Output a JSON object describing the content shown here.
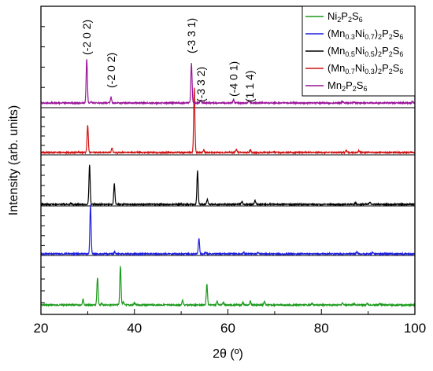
{
  "chart_data": {
    "type": "line",
    "xlabel": "2θ (º)",
    "ylabel": "Intensity (arb. units)",
    "xlim": [
      20,
      100
    ],
    "xticks": [
      "20",
      "40",
      "60",
      "80",
      "100"
    ],
    "grid": false,
    "legend_position": "top-right",
    "series": [
      {
        "name_parts": [
          {
            "t": "Ni"
          },
          {
            "t": "2",
            "sub": true
          },
          {
            "t": "P"
          },
          {
            "t": "2",
            "sub": true
          },
          {
            "t": "S"
          },
          {
            "t": "6",
            "sub": true
          }
        ],
        "color": "#1a9a1a",
        "peaks": [
          [
            29.0,
            0.15
          ],
          [
            32.1,
            0.7
          ],
          [
            33.0,
            0.04
          ],
          [
            37.0,
            1.0
          ],
          [
            37.6,
            0.08
          ],
          [
            40.0,
            0.05
          ],
          [
            50.3,
            0.12
          ],
          [
            55.5,
            0.52
          ],
          [
            57.7,
            0.1
          ],
          [
            59.0,
            0.06
          ],
          [
            63.2,
            0.07
          ],
          [
            64.8,
            0.09
          ],
          [
            67.8,
            0.09
          ],
          [
            78.0,
            0.04
          ],
          [
            84.5,
            0.05
          ],
          [
            87.0,
            0.03
          ],
          [
            89.8,
            0.05
          ],
          [
            92.5,
            0.04
          ]
        ]
      },
      {
        "name_parts": [
          {
            "t": "(Mn"
          },
          {
            "t": "0.3",
            "sub": true
          },
          {
            "t": "Ni"
          },
          {
            "t": "0.7",
            "sub": true
          },
          {
            "t": ")"
          },
          {
            "t": "2",
            "sub": true
          },
          {
            "t": "P"
          },
          {
            "t": "2",
            "sub": true
          },
          {
            "t": "S"
          },
          {
            "t": "6",
            "sub": true
          }
        ],
        "color": "#1f1fe0",
        "peaks": [
          [
            30.6,
            1.0
          ],
          [
            35.8,
            0.04
          ],
          [
            53.8,
            0.31
          ],
          [
            55.2,
            0.03
          ],
          [
            63.4,
            0.03
          ],
          [
            66.5,
            0.03
          ],
          [
            87.6,
            0.04
          ],
          [
            91.0,
            0.03
          ]
        ]
      },
      {
        "name_parts": [
          {
            "t": "(Mn"
          },
          {
            "t": "0.5",
            "sub": true
          },
          {
            "t": "Ni"
          },
          {
            "t": "0.5",
            "sub": true
          },
          {
            "t": ")"
          },
          {
            "t": "2",
            "sub": true
          },
          {
            "t": "P"
          },
          {
            "t": "2",
            "sub": true
          },
          {
            "t": "S"
          },
          {
            "t": "6",
            "sub": true
          }
        ],
        "color": "#000000",
        "peaks": [
          [
            26.5,
            0.02
          ],
          [
            30.4,
            1.0
          ],
          [
            35.7,
            0.52
          ],
          [
            53.5,
            0.85
          ],
          [
            55.6,
            0.12
          ],
          [
            63.0,
            0.08
          ],
          [
            65.8,
            0.1
          ],
          [
            87.3,
            0.04
          ],
          [
            90.4,
            0.06
          ]
        ]
      },
      {
        "name_parts": [
          {
            "t": "(Mn"
          },
          {
            "t": "0.7",
            "sub": true
          },
          {
            "t": "Ni"
          },
          {
            "t": "0.3",
            "sub": true
          },
          {
            "t": ")"
          },
          {
            "t": "2",
            "sub": true
          },
          {
            "t": "P"
          },
          {
            "t": "2",
            "sub": true
          },
          {
            "t": "S"
          },
          {
            "t": "6",
            "sub": true
          }
        ],
        "color": "#d01010",
        "peaks": [
          [
            30.0,
            0.42
          ],
          [
            35.2,
            0.07
          ],
          [
            52.8,
            1.0
          ],
          [
            54.8,
            0.04
          ],
          [
            61.8,
            0.05
          ],
          [
            64.8,
            0.04
          ],
          [
            85.3,
            0.03
          ],
          [
            88.0,
            0.03
          ]
        ]
      },
      {
        "name_parts": [
          {
            "t": "Mn"
          },
          {
            "t": "2",
            "sub": true
          },
          {
            "t": "P"
          },
          {
            "t": "2",
            "sub": true
          },
          {
            "t": "S"
          },
          {
            "t": "6",
            "sub": true
          }
        ],
        "color": "#9a149a",
        "peaks": [
          [
            29.8,
            1.0
          ],
          [
            30.8,
            0.03
          ],
          [
            35.0,
            0.13
          ],
          [
            52.2,
            0.9
          ],
          [
            54.2,
            0.06
          ],
          [
            61.2,
            0.07
          ],
          [
            64.5,
            0.05
          ],
          [
            84.5,
            0.04
          ],
          [
            87.0,
            0.03
          ],
          [
            99.5,
            0.03
          ]
        ]
      }
    ],
    "annotations": [
      {
        "text": "(-2 0 2)",
        "x": 29.8
      },
      {
        "text": "(-2 0 2)",
        "x": 35.0
      },
      {
        "text": "(-3 3 1)",
        "x": 52.2
      },
      {
        "text": "(-3 3 2)",
        "x": 54.2
      },
      {
        "text": "(-4 0 1)",
        "x": 61.2
      },
      {
        "text": "(1 1 4)",
        "x": 64.6
      }
    ]
  }
}
